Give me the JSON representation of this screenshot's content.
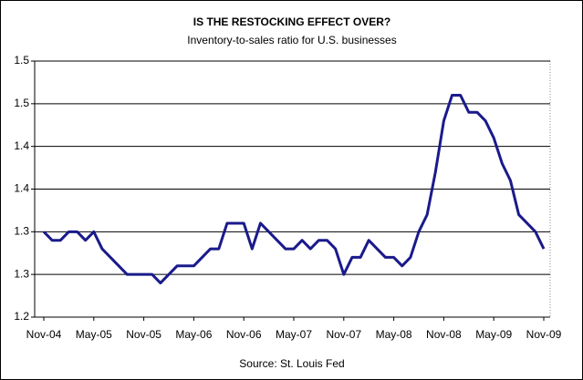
{
  "chart_data": {
    "type": "line",
    "title": "IS THE RESTOCKING EFFECT OVER?",
    "subtitle": "Inventory-to-sales ratio for U.S. businesses",
    "source": "Source: St. Louis Fed",
    "categories": [
      "Nov-04",
      null,
      null,
      null,
      null,
      null,
      "May-05",
      null,
      null,
      null,
      null,
      null,
      "Nov-05",
      null,
      null,
      null,
      null,
      null,
      "May-06",
      null,
      null,
      null,
      null,
      null,
      "Nov-06",
      null,
      null,
      null,
      null,
      null,
      "May-07",
      null,
      null,
      null,
      null,
      null,
      "Nov-07",
      null,
      null,
      null,
      null,
      null,
      "May-08",
      null,
      null,
      null,
      null,
      null,
      "Nov-08",
      null,
      null,
      null,
      null,
      null,
      "May-09",
      null,
      null,
      null,
      null,
      null,
      "Nov-09"
    ],
    "series": [
      {
        "name": "Inventory-to-sales ratio",
        "color": "#1a1a8c",
        "values": [
          1.3,
          1.29,
          1.29,
          1.3,
          1.3,
          1.29,
          1.3,
          1.28,
          1.27,
          1.26,
          1.25,
          1.25,
          1.25,
          1.25,
          1.24,
          1.25,
          1.26,
          1.26,
          1.26,
          1.27,
          1.28,
          1.28,
          1.31,
          1.31,
          1.31,
          1.28,
          1.31,
          1.3,
          1.29,
          1.28,
          1.28,
          1.29,
          1.28,
          1.29,
          1.29,
          1.28,
          1.25,
          1.27,
          1.27,
          1.29,
          1.28,
          1.27,
          1.27,
          1.26,
          1.27,
          1.3,
          1.32,
          1.37,
          1.43,
          1.46,
          1.46,
          1.44,
          1.44,
          1.43,
          1.41,
          1.38,
          1.36,
          1.32,
          1.31,
          1.3,
          1.28
        ]
      }
    ],
    "ylim": [
      1.2,
      1.5
    ],
    "yticks": [
      {
        "value": 1.2,
        "label": "1.2"
      },
      {
        "value": 1.25,
        "label": "1.3"
      },
      {
        "value": 1.3,
        "label": "1.3"
      },
      {
        "value": 1.35,
        "label": "1.4"
      },
      {
        "value": 1.4,
        "label": "1.4"
      },
      {
        "value": 1.45,
        "label": "1.5"
      },
      {
        "value": 1.5,
        "label": "1.5"
      }
    ],
    "grid": true
  }
}
